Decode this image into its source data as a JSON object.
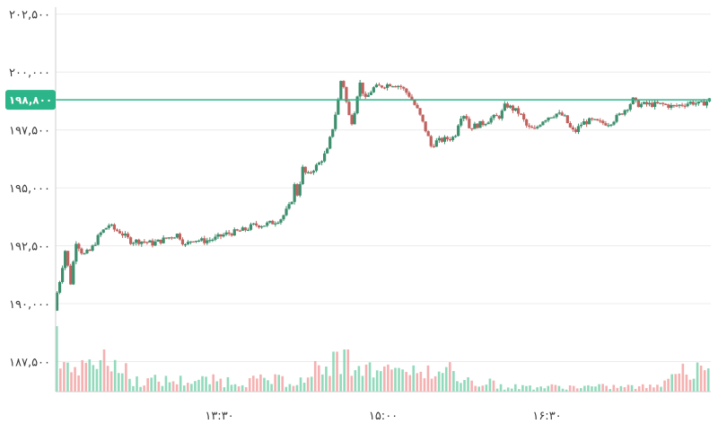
{
  "chart_data": {
    "type": "candlestick",
    "y_ticks": [
      {
        "value": 187500,
        "label": "۱۸۷,۵۰۰"
      },
      {
        "value": 190000,
        "label": "۱۹۰,۰۰۰"
      },
      {
        "value": 192500,
        "label": "۱۹۲,۵۰۰"
      },
      {
        "value": 195000,
        "label": "۱۹۵,۰۰۰"
      },
      {
        "value": 197500,
        "label": "۱۹۷,۵۰۰"
      },
      {
        "value": 200000,
        "label": "۲۰۰,۰۰۰"
      },
      {
        "value": 202500,
        "label": "۲۰۲,۵۰۰"
      }
    ],
    "x_ticks": [
      {
        "time": "13:30",
        "label": "۱۳:۳۰"
      },
      {
        "time": "15:00",
        "label": "۱۵:۰۰"
      },
      {
        "time": "16:30",
        "label": "۱۶:۳۰"
      }
    ],
    "ylim": [
      186200,
      202800
    ],
    "time_range": [
      "12:00",
      "18:00"
    ],
    "current_price": {
      "value": 198800,
      "label": "۱۹۸,۸۰۰"
    },
    "grid": "horizontal",
    "colors": {
      "up": "#3d8f6e",
      "down": "#c0625e",
      "volume_up": "#7fd3b0",
      "volume_down": "#f3a3a3",
      "price_line": "#2bb589",
      "grid": "#ececec",
      "axis": "#cfcfcf"
    },
    "price_path": [
      [
        "12:00",
        189700
      ],
      [
        "12:01",
        190300
      ],
      [
        "12:03",
        191000
      ],
      [
        "12:06",
        192300
      ],
      [
        "12:09",
        190900
      ],
      [
        "12:12",
        192700
      ],
      [
        "12:16",
        192100
      ],
      [
        "12:20",
        192300
      ],
      [
        "12:25",
        193000
      ],
      [
        "12:30",
        193400
      ],
      [
        "12:33",
        193200
      ],
      [
        "12:36",
        193100
      ],
      [
        "12:42",
        192700
      ],
      [
        "12:48",
        192700
      ],
      [
        "12:54",
        192600
      ],
      [
        "12:58",
        192700
      ],
      [
        "13:04",
        192900
      ],
      [
        "13:08",
        193000
      ],
      [
        "13:12",
        192500
      ],
      [
        "13:16",
        192800
      ],
      [
        "13:22",
        192700
      ],
      [
        "13:28",
        192800
      ],
      [
        "13:34",
        193000
      ],
      [
        "13:40",
        193100
      ],
      [
        "13:45",
        193200
      ],
      [
        "13:50",
        193400
      ],
      [
        "13:55",
        193400
      ],
      [
        "14:00",
        193500
      ],
      [
        "14:05",
        193700
      ],
      [
        "14:10",
        194300
      ],
      [
        "14:12",
        195100
      ],
      [
        "14:14",
        194600
      ],
      [
        "14:16",
        195900
      ],
      [
        "14:19",
        195500
      ],
      [
        "14:22",
        195800
      ],
      [
        "14:25",
        196000
      ],
      [
        "14:30",
        196600
      ],
      [
        "14:33",
        197600
      ],
      [
        "14:36",
        198800
      ],
      [
        "14:38",
        199900
      ],
      [
        "14:40",
        198900
      ],
      [
        "14:42",
        198100
      ],
      [
        "14:44",
        197800
      ],
      [
        "14:46",
        198900
      ],
      [
        "14:48",
        199500
      ],
      [
        "14:51",
        198800
      ],
      [
        "14:55",
        199300
      ],
      [
        "15:00",
        199400
      ],
      [
        "15:05",
        199500
      ],
      [
        "15:10",
        199400
      ],
      [
        "15:15",
        199000
      ],
      [
        "15:20",
        198300
      ],
      [
        "15:23",
        197700
      ],
      [
        "15:25",
        197300
      ],
      [
        "15:27",
        196800
      ],
      [
        "15:30",
        197000
      ],
      [
        "15:35",
        197100
      ],
      [
        "15:40",
        197200
      ],
      [
        "15:43",
        198100
      ],
      [
        "15:46",
        198200
      ],
      [
        "15:48",
        197600
      ],
      [
        "15:52",
        197700
      ],
      [
        "15:56",
        197800
      ],
      [
        "16:00",
        198000
      ],
      [
        "16:05",
        198100
      ],
      [
        "16:08",
        198600
      ],
      [
        "16:12",
        198400
      ],
      [
        "16:16",
        198200
      ],
      [
        "16:20",
        197600
      ],
      [
        "16:24",
        197500
      ],
      [
        "16:28",
        197900
      ],
      [
        "16:32",
        198100
      ],
      [
        "16:36",
        198200
      ],
      [
        "16:40",
        198100
      ],
      [
        "16:44",
        197500
      ],
      [
        "16:46",
        197400
      ],
      [
        "16:50",
        197800
      ],
      [
        "16:55",
        197900
      ],
      [
        "17:00",
        197800
      ],
      [
        "17:05",
        197800
      ],
      [
        "17:10",
        198100
      ],
      [
        "17:15",
        198500
      ],
      [
        "17:18",
        198800
      ],
      [
        "17:20",
        198600
      ],
      [
        "17:25",
        198600
      ],
      [
        "17:30",
        198600
      ],
      [
        "17:35",
        198600
      ],
      [
        "17:40",
        198500
      ],
      [
        "17:45",
        198600
      ],
      [
        "17:50",
        198700
      ],
      [
        "17:55",
        198600
      ],
      [
        "18:00",
        198800
      ]
    ],
    "volume_peaks": [
      {
        "time": "12:00",
        "relative": 0.9
      },
      {
        "time": "12:26",
        "relative": 0.58
      },
      {
        "time": "14:33",
        "relative": 0.55
      },
      {
        "time": "14:39",
        "relative": 0.58
      },
      {
        "time": "15:24",
        "relative": 0.36
      },
      {
        "time": "17:58",
        "relative": 0.32
      }
    ]
  }
}
